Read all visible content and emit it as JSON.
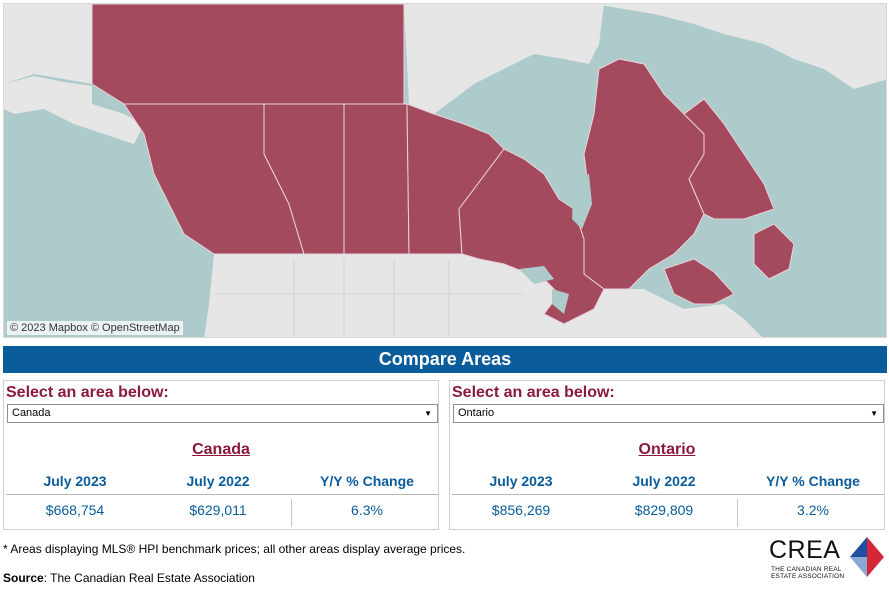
{
  "map": {
    "attribution": "© 2023 Mapbox  © OpenStreetMap",
    "highlight_color": "#a44a5f",
    "water_color": "#aecbcc",
    "land_color": "#e6e6e6"
  },
  "banner": {
    "title": "Compare Areas"
  },
  "panels": [
    {
      "select_label": "Select an area below:",
      "selected": "Canada",
      "area_name": "Canada",
      "columns": [
        "July 2023",
        "July 2022",
        "Y/Y % Change"
      ],
      "values": [
        "$668,754",
        "$629,011",
        "6.3%"
      ]
    },
    {
      "select_label": "Select an area below:",
      "selected": "Ontario",
      "area_name": "Ontario",
      "columns": [
        "July 2023",
        "July 2022",
        "Y/Y % Change"
      ],
      "values": [
        "$856,269",
        "$829,809",
        "3.2%"
      ]
    }
  ],
  "footer": {
    "footnote": "* Areas displaying MLS® HPI benchmark prices; all other areas display average prices.",
    "source_label": "Source",
    "source_text": ": The Canadian Real Estate Association"
  },
  "logo": {
    "word": "CREA",
    "sub_line1": "THE CANADIAN REAL",
    "sub_line2": "ESTATE ASSOCIATION",
    "colors": [
      "#1e4fa0",
      "#d6263a"
    ]
  }
}
